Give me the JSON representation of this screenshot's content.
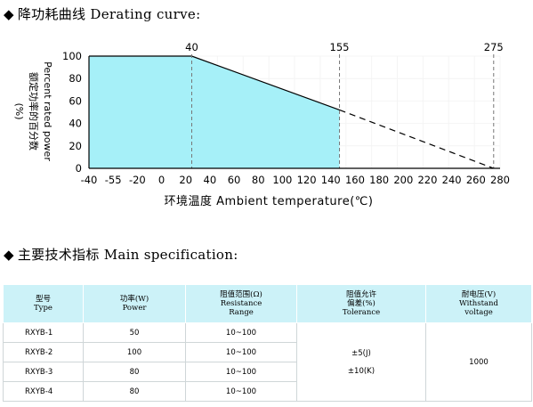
{
  "derating_section": {
    "heading": "降功耗曲线 Derating curve:",
    "bullet": "◆"
  },
  "spec_section": {
    "heading": "主要技术指标 Main specification:",
    "bullet": "◆"
  },
  "chart_data": {
    "type": "area",
    "title": "",
    "xlabel": "环境温度 Ambient temperature(℃)",
    "ylabel_lines": [
      "Percent rated power",
      "额定功率的百分数",
      "(%)"
    ],
    "x_ticks": [
      "-40",
      "-55",
      "-20",
      "0",
      "20",
      "40",
      "60",
      "80",
      "100",
      "120",
      "140",
      "160",
      "180",
      "200",
      "220",
      "240",
      "260",
      "280"
    ],
    "y_ticks": [
      "0",
      "20",
      "40",
      "60",
      "80",
      "100"
    ],
    "ylim": [
      0,
      100
    ],
    "top_labels": [
      "40",
      "155",
      "275"
    ],
    "series": [
      {
        "style": "solid",
        "fill": "#a6f0f8",
        "points": [
          [
            -40,
            100
          ],
          [
            40,
            100
          ],
          [
            155,
            52
          ]
        ]
      },
      {
        "style": "dashed",
        "points": [
          [
            155,
            52
          ],
          [
            275,
            0
          ]
        ]
      }
    ],
    "dashed_verticals": [
      40,
      155,
      275
    ],
    "grid": true,
    "fill_color": "#a6f0f8",
    "grid_color": "#f4f4f4"
  },
  "spec_table": {
    "headers": [
      [
        "型号",
        "Type"
      ],
      [
        "功率(W)",
        "Power"
      ],
      [
        "阻值范围(Ω)",
        "Resistance",
        "Range"
      ],
      [
        "阻值允许",
        "偏差(%)",
        "Tolerance"
      ],
      [
        "耐电压(V)",
        "Withstand",
        "voltage"
      ]
    ],
    "rows": [
      {
        "type": "RXYB-1",
        "power": "50",
        "range": "10~100"
      },
      {
        "type": "RXYB-2",
        "power": "100",
        "range": "10~100"
      },
      {
        "type": "RXYB-3",
        "power": "80",
        "range": "10~100"
      },
      {
        "type": "RXYB-4",
        "power": "80",
        "range": "10~100"
      }
    ],
    "tolerance": [
      "±5(J)",
      "±10(K)"
    ],
    "withstand_voltage": "1000",
    "header_color": "#ccf2f8"
  }
}
